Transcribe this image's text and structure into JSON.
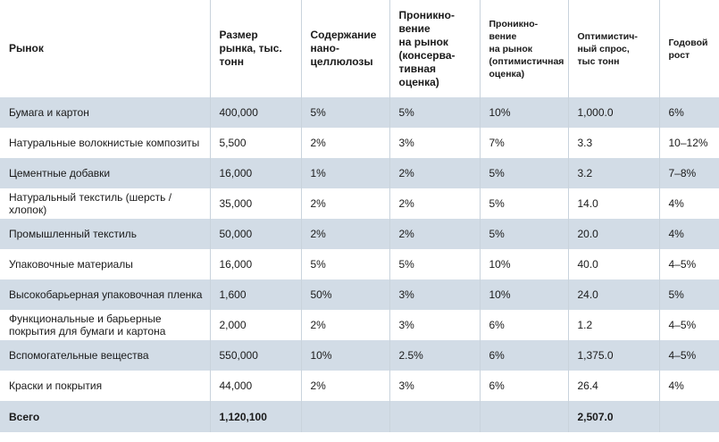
{
  "columns": [
    "Рынок",
    "Размер\nрынка, тыс.\nтонн",
    "Содержание\nнано-\nцеллюлозы",
    "Проникно-\nвение\nна рынок\n(консерва-\nтивная\nоценка)",
    "Проникно-\nвение\nна рынок\n(оптимистичная\nоценка)",
    "Оптимистич-\nный спрос,\nтыс тонн",
    "Годовой\nрост"
  ],
  "rows": [
    [
      "Бумага и картон",
      "400,000",
      "5%",
      "5%",
      "10%",
      "1,000.0",
      "6%"
    ],
    [
      "Натуральные волокнистые композиты",
      "5,500",
      "2%",
      "3%",
      "7%",
      "3.3",
      "10–12%"
    ],
    [
      "Цементные добавки",
      "16,000",
      "1%",
      "2%",
      "5%",
      "3.2",
      "7–8%"
    ],
    [
      "Натуральный текстиль (шерсть /хлопок)",
      "35,000",
      "2%",
      "2%",
      "5%",
      "14.0",
      "4%"
    ],
    [
      "Промышленный текстиль",
      "50,000",
      "2%",
      "2%",
      "5%",
      "20.0",
      "4%"
    ],
    [
      "Упаковочные материалы",
      "16,000",
      "5%",
      "5%",
      "10%",
      "40.0",
      "4–5%"
    ],
    [
      "Высокобарьерная упаковочная пленка",
      "1,600",
      "50%",
      "3%",
      "10%",
      "24.0",
      "5%"
    ],
    [
      "Функциональные и барьерные\nпокрытия для бумаги и картона",
      "2,000",
      "2%",
      "3%",
      "6%",
      "1.2",
      "4–5%"
    ],
    [
      "Вспомогательные вещества",
      "550,000",
      "10%",
      "2.5%",
      "6%",
      "1,375.0",
      "4–5%"
    ],
    [
      "Краски и покрытия",
      "44,000",
      "2%",
      "3%",
      "6%",
      "26.4",
      "4%"
    ]
  ],
  "total": [
    "Всего",
    "1,120,100",
    "",
    "",
    "",
    "2,507.0",
    ""
  ]
}
